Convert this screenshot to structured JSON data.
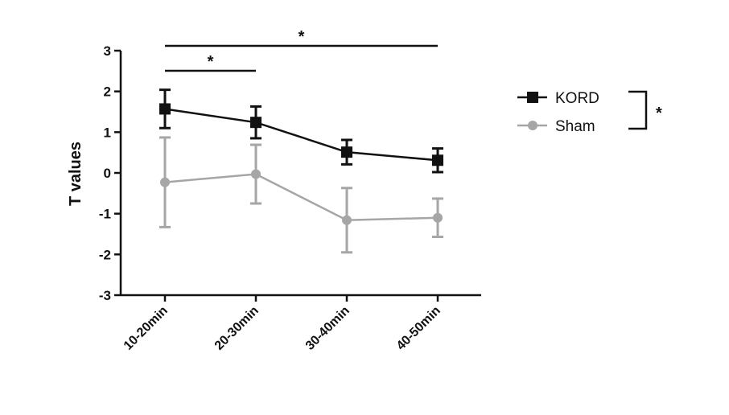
{
  "chart_data": {
    "type": "line",
    "title": "",
    "xlabel": "",
    "ylabel": "T values",
    "ylim": [
      -3,
      3
    ],
    "yticks": [
      "3",
      "2",
      "1",
      "0",
      "-1",
      "-2",
      "-3"
    ],
    "ytick_values": [
      3,
      2,
      1,
      0,
      -1,
      -2,
      -3
    ],
    "categories": [
      "10-20min",
      "20-30min",
      "30-40min",
      "40-50min"
    ],
    "series": [
      {
        "name": "Sham",
        "color": "#a6a6a6",
        "marker": "circle",
        "values": [
          -0.23,
          -0.03,
          -1.16,
          -1.1
        ],
        "err_low": [
          -1.33,
          -0.75,
          -1.95,
          -1.57
        ],
        "err_high": [
          0.87,
          0.69,
          -0.37,
          -0.63
        ]
      },
      {
        "name": "KORD",
        "color": "#111111",
        "marker": "square",
        "values": [
          1.57,
          1.24,
          0.51,
          0.31
        ],
        "err_low": [
          1.1,
          0.85,
          0.21,
          0.02
        ],
        "err_high": [
          2.04,
          1.63,
          0.81,
          0.6
        ]
      }
    ],
    "significance_bars": [
      {
        "from": 0,
        "to": 3,
        "label": "*"
      },
      {
        "from": 0,
        "to": 1,
        "label": "*"
      }
    ],
    "legend_position": "right",
    "legend_bracket_label": "*"
  }
}
